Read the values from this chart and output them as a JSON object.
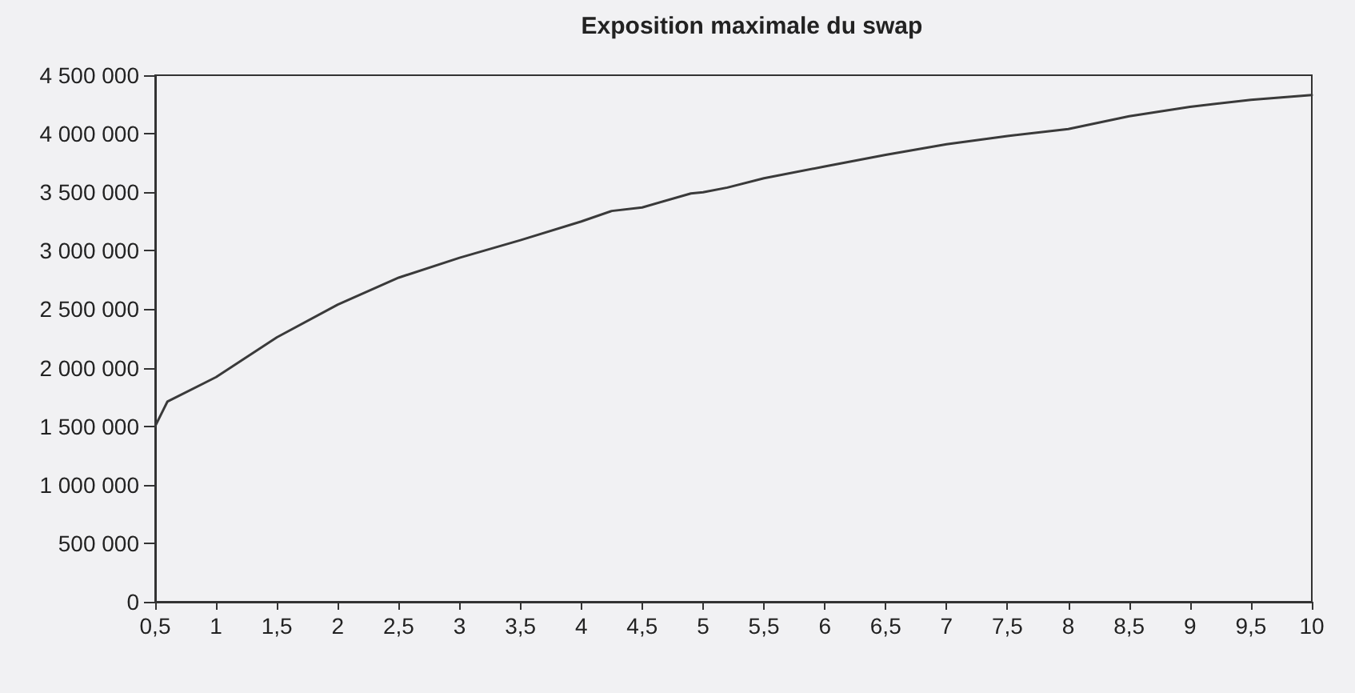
{
  "chart_data": {
    "type": "line",
    "title": "Exposition maximale du swap",
    "x": [
      0.5,
      0.6,
      1,
      1.5,
      2,
      2.5,
      3,
      3.5,
      4,
      4.25,
      4.5,
      4.9,
      5,
      5.2,
      5.5,
      6,
      6.5,
      7,
      7.5,
      8,
      8.5,
      9,
      9.5,
      10
    ],
    "series": [
      {
        "color": "#3a3a3a",
        "values": [
          1500000,
          1710000,
          1920000,
          2260000,
          2540000,
          2770000,
          2940000,
          3090000,
          3250000,
          3340000,
          3370000,
          3490000,
          3500000,
          3540000,
          3620000,
          3720000,
          3820000,
          3910000,
          3980000,
          4040000,
          4150000,
          4230000,
          4290000,
          4330000
        ]
      }
    ],
    "xlim": [
      0.5,
      10
    ],
    "xticks": [
      {
        "value": 0.5,
        "label": "0,5"
      },
      1,
      {
        "value": 1.5,
        "label": "1,5"
      },
      2,
      {
        "value": 2.5,
        "label": "2,5"
      },
      3,
      {
        "value": 3.5,
        "label": "3,5"
      },
      4,
      {
        "value": 4.5,
        "label": "4,5"
      },
      5,
      {
        "value": 5.5,
        "label": "5,5"
      },
      6,
      {
        "value": 6.5,
        "label": "6,5"
      },
      7,
      {
        "value": 7.5,
        "label": "7,5"
      },
      8,
      {
        "value": 8.5,
        "label": "8,5"
      },
      9,
      {
        "value": 9.5,
        "label": "9,5"
      },
      10
    ],
    "ylim": [
      0,
      4500000
    ],
    "yticks": [
      0,
      {
        "value": 500000,
        "label": "500 000"
      },
      {
        "value": 1000000,
        "label": "1 000 000"
      },
      {
        "value": 1500000,
        "label": "1 500 000"
      },
      {
        "value": 2000000,
        "label": "2 000 000"
      },
      {
        "value": 2500000,
        "label": "2 500 000"
      },
      {
        "value": 3000000,
        "label": "3 000 000"
      },
      {
        "value": 3500000,
        "label": "3 500 000"
      },
      {
        "value": 4000000,
        "label": "4 000 000"
      },
      {
        "value": 4500000,
        "label": "4 500 000"
      }
    ],
    "grid": false,
    "marker": "none",
    "line_style": "solid"
  }
}
